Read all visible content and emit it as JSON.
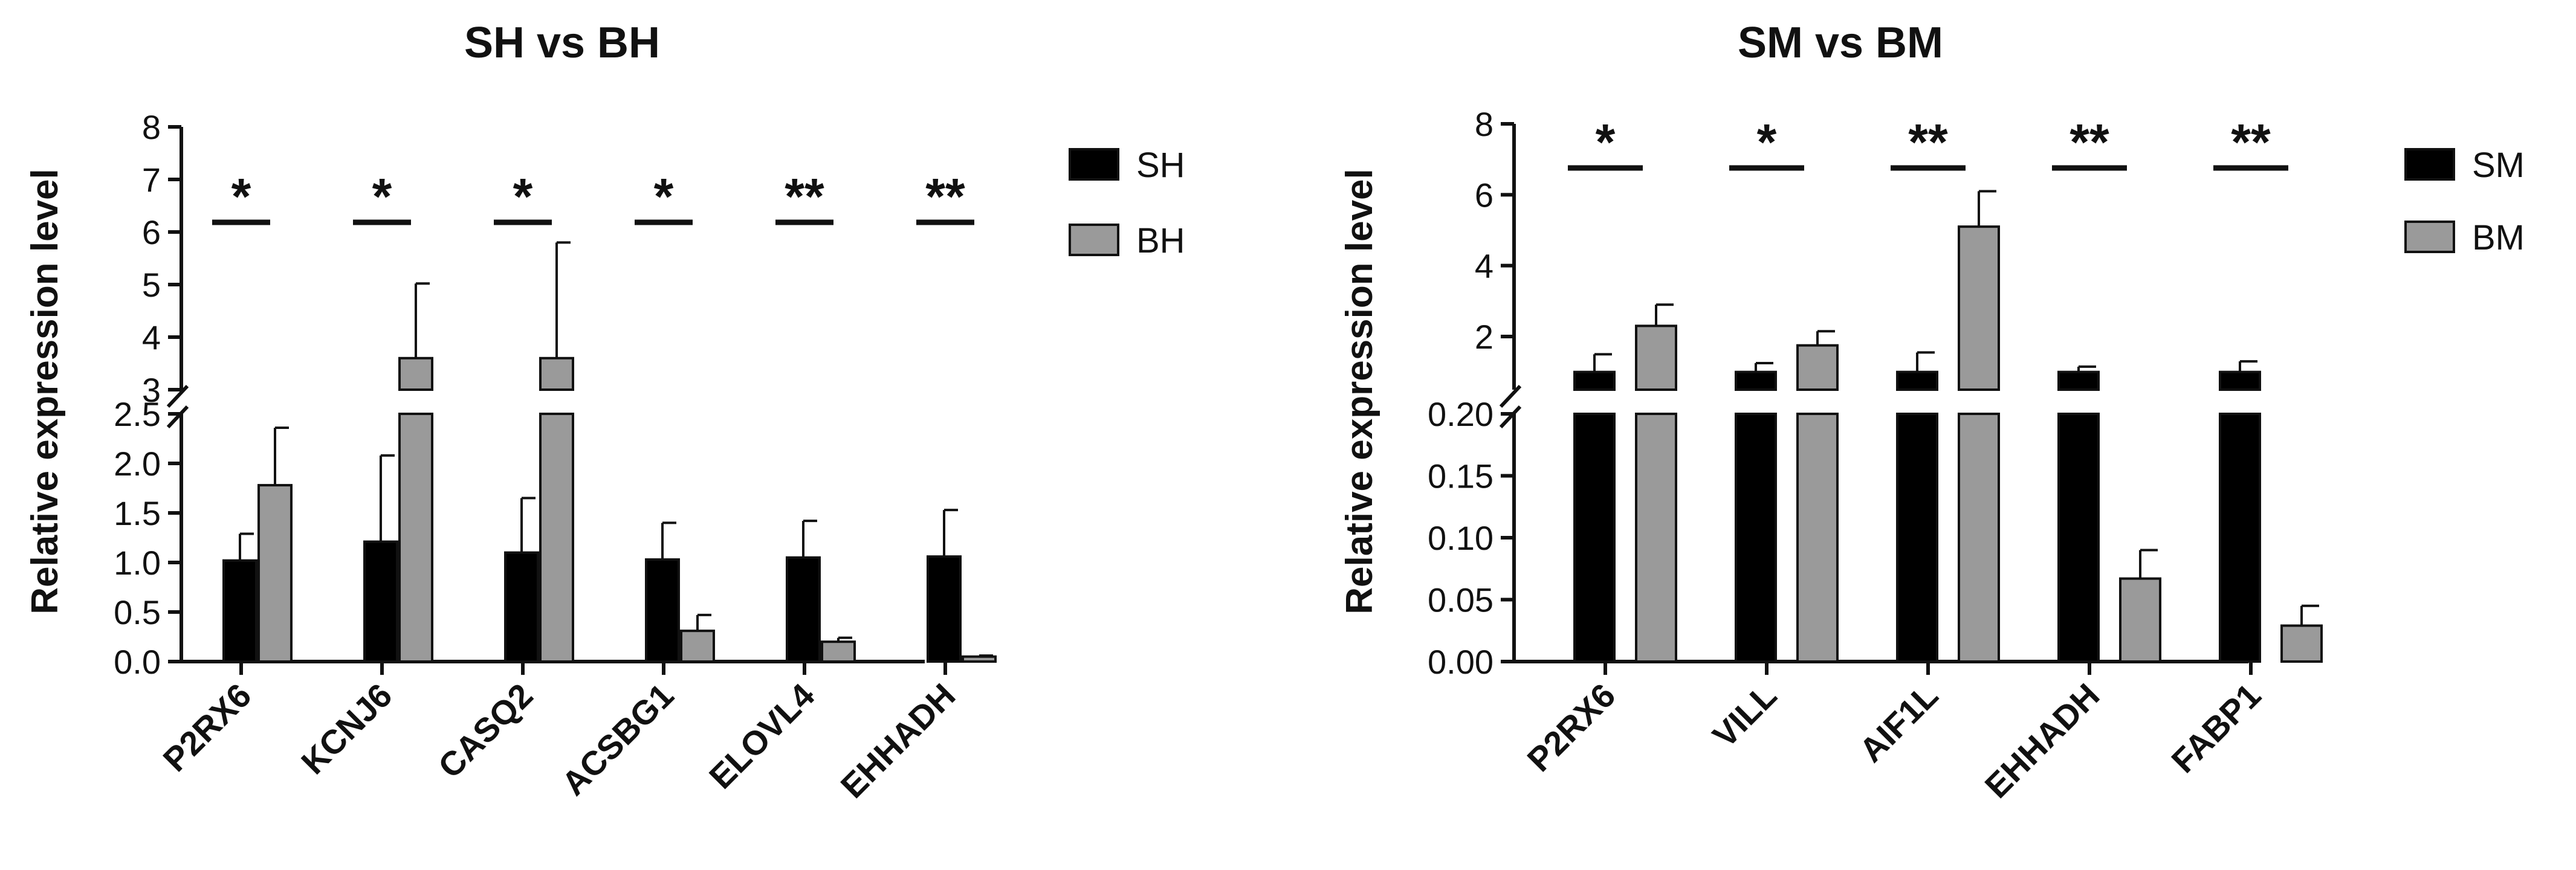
{
  "chart_data": [
    {
      "type": "bar",
      "title": "SH vs BH",
      "ylabel": "Relative expression level",
      "categories": [
        "P2RX6",
        "KCNJ6",
        "CASQ2",
        "ACSBG1",
        "ELOVL4",
        "EHHADH"
      ],
      "series": [
        {
          "name": "SH",
          "color": "#000000",
          "values": [
            1.02,
            1.21,
            1.1,
            1.03,
            1.05,
            1.06
          ],
          "errors": [
            0.27,
            0.87,
            0.55,
            0.37,
            0.37,
            0.47
          ]
        },
        {
          "name": "BH",
          "color": "#9a9a9a",
          "values": [
            1.78,
            3.6,
            3.6,
            0.31,
            0.2,
            0.05
          ],
          "errors": [
            0.58,
            1.42,
            2.2,
            0.16,
            0.04,
            0.01
          ]
        }
      ],
      "significance": [
        "*",
        "*",
        "*",
        "*",
        "**",
        "**"
      ],
      "y_axis_broken": true,
      "ylim_lower": [
        0,
        2.5
      ],
      "ylim_upper": [
        3,
        8
      ],
      "yticks_lower": [
        "0.0",
        "0.5",
        "1.0",
        "1.5",
        "2.0",
        "2.5"
      ],
      "yticks_upper": [
        "3",
        "4",
        "5",
        "6",
        "7",
        "8"
      ],
      "legend_position": "right"
    },
    {
      "type": "bar",
      "title": "SM vs BM",
      "ylabel": "Relative expression level",
      "categories": [
        "P2RX6",
        "VILL",
        "AIF1L",
        "EHHADH",
        "FABP1"
      ],
      "series": [
        {
          "name": "SM",
          "color": "#000000",
          "values": [
            1.0,
            1.0,
            1.0,
            1.0,
            1.0
          ],
          "errors": [
            0.5,
            0.25,
            0.55,
            0.15,
            0.3
          ]
        },
        {
          "name": "BM",
          "color": "#9a9a9a",
          "values": [
            2.3,
            1.75,
            5.1,
            0.067,
            0.029
          ],
          "errors": [
            0.6,
            0.4,
            1.0,
            0.023,
            0.016
          ]
        }
      ],
      "significance": [
        "*",
        "*",
        "**",
        "**",
        "**"
      ],
      "y_axis_broken": true,
      "ylim_lower": [
        0,
        0.2
      ],
      "ylim_upper": [
        0.5,
        8
      ],
      "yticks_lower": [
        "0.00",
        "0.05",
        "0.10",
        "0.15",
        "0.20"
      ],
      "yticks_upper": [
        "2",
        "4",
        "6",
        "8"
      ],
      "legend_position": "right"
    }
  ]
}
